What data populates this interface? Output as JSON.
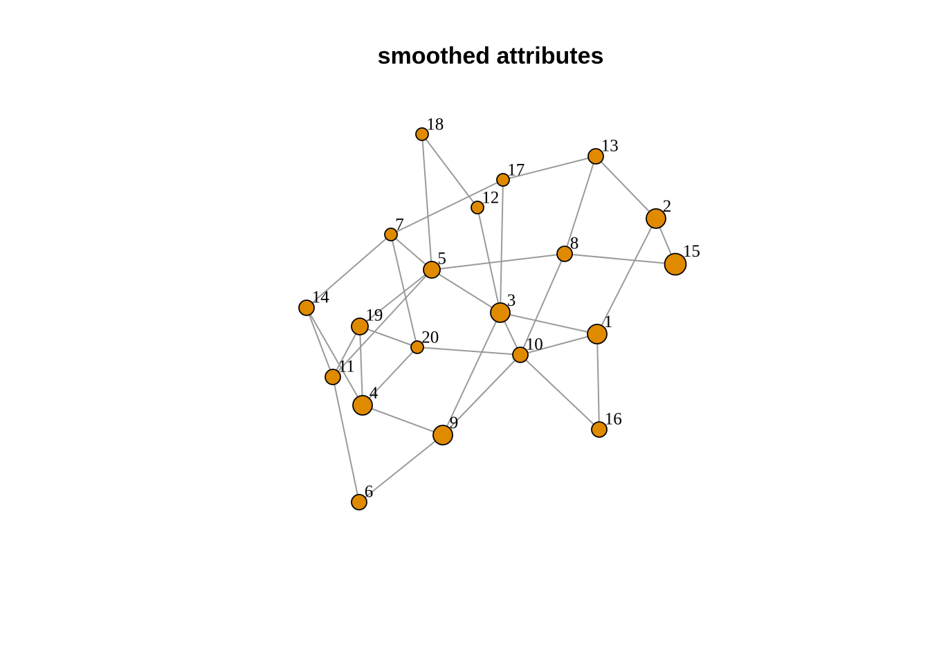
{
  "title": "smoothed attributes",
  "colors": {
    "node_fill": "#E08A00",
    "node_stroke": "#000000",
    "edge": "#9A9A9A",
    "background": "#FFFFFF"
  },
  "graph": {
    "nodes": [
      {
        "id": "1",
        "label": "1",
        "size": "large"
      },
      {
        "id": "2",
        "label": "2",
        "size": "large"
      },
      {
        "id": "3",
        "label": "3",
        "size": "large"
      },
      {
        "id": "4",
        "label": "4",
        "size": "large"
      },
      {
        "id": "5",
        "label": "5",
        "size": "medium"
      },
      {
        "id": "6",
        "label": "6",
        "size": "small"
      },
      {
        "id": "7",
        "label": "7",
        "size": "xsmall"
      },
      {
        "id": "8",
        "label": "8",
        "size": "small"
      },
      {
        "id": "9",
        "label": "9",
        "size": "large"
      },
      {
        "id": "10",
        "label": "10",
        "size": "small"
      },
      {
        "id": "11",
        "label": "11",
        "size": "small"
      },
      {
        "id": "12",
        "label": "12",
        "size": "xsmall"
      },
      {
        "id": "13",
        "label": "13",
        "size": "small"
      },
      {
        "id": "14",
        "label": "14",
        "size": "small"
      },
      {
        "id": "15",
        "label": "15",
        "size": "xlarge"
      },
      {
        "id": "16",
        "label": "16",
        "size": "small"
      },
      {
        "id": "17",
        "label": "17",
        "size": "xsmall"
      },
      {
        "id": "18",
        "label": "18",
        "size": "xsmall"
      },
      {
        "id": "19",
        "label": "19",
        "size": "medium"
      },
      {
        "id": "20",
        "label": "20",
        "size": "xsmall"
      }
    ],
    "edges": [
      [
        "18",
        "5"
      ],
      [
        "18",
        "12"
      ],
      [
        "12",
        "3"
      ],
      [
        "7",
        "17"
      ],
      [
        "17",
        "13"
      ],
      [
        "17",
        "3"
      ],
      [
        "13",
        "8"
      ],
      [
        "13",
        "2"
      ],
      [
        "2",
        "15"
      ],
      [
        "2",
        "1"
      ],
      [
        "7",
        "14"
      ],
      [
        "7",
        "5"
      ],
      [
        "7",
        "20"
      ],
      [
        "5",
        "8"
      ],
      [
        "8",
        "15"
      ],
      [
        "5",
        "3"
      ],
      [
        "5",
        "19"
      ],
      [
        "5",
        "11"
      ],
      [
        "8",
        "10"
      ],
      [
        "3",
        "1"
      ],
      [
        "3",
        "10"
      ],
      [
        "3",
        "9"
      ],
      [
        "1",
        "10"
      ],
      [
        "1",
        "16"
      ],
      [
        "10",
        "16"
      ],
      [
        "14",
        "11"
      ],
      [
        "14",
        "4"
      ],
      [
        "19",
        "11"
      ],
      [
        "19",
        "4"
      ],
      [
        "19",
        "20"
      ],
      [
        "20",
        "10"
      ],
      [
        "20",
        "4"
      ],
      [
        "11",
        "6"
      ],
      [
        "4",
        "9"
      ],
      [
        "9",
        "10"
      ],
      [
        "9",
        "6"
      ]
    ]
  }
}
